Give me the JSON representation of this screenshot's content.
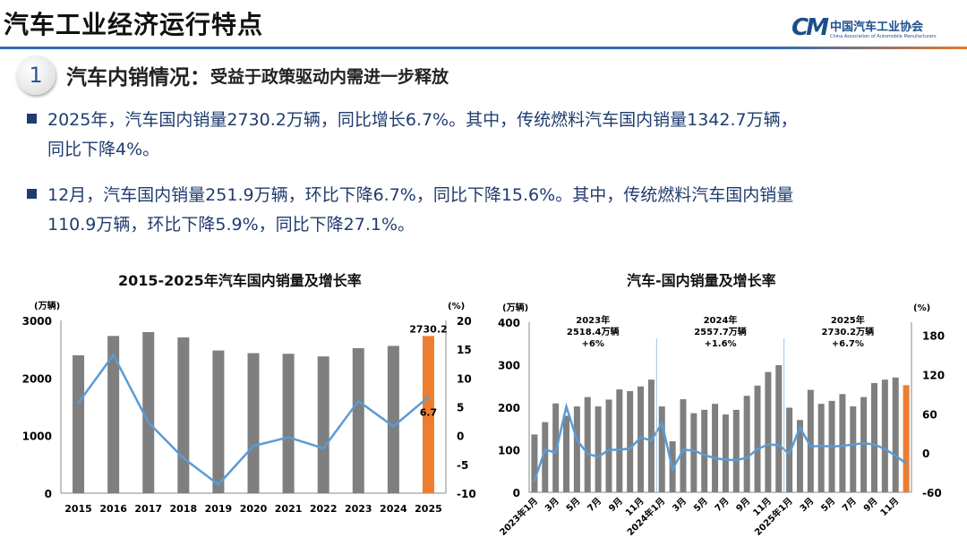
{
  "header": {
    "title": "汽车工业经济运行特点",
    "logo_mark": "CM",
    "logo_cn": "中国汽车工业协会",
    "logo_en": "China Association of Automobile Manufacturers"
  },
  "section": {
    "number": "1",
    "title": "汽车内销情况：",
    "subtitle": "受益于政策驱动内需进一步释放"
  },
  "bullets": [
    {
      "line1": "2025年，汽车国内销量2730.2万辆，同比增长6.7%。其中，传统燃料汽车国内销量1342.7万辆，",
      "line2": "同比下降4%。"
    },
    {
      "line1": "12月，汽车国内销量251.9万辆，环比下降6.7%，同比下降15.6%。其中，传统燃料汽车国内销量",
      "line2": "110.9万辆，环比下降5.9%，同比下降27.1%。"
    }
  ],
  "colors": {
    "bar": "#7f7f7f",
    "highlight": "#ed7d31",
    "line": "#5b9bd5",
    "text": "#1f3c6e"
  },
  "chart_data": [
    {
      "type": "bar+line",
      "title": "2015-2025年汽车国内销量及增长率",
      "ylabel": "(万辆)",
      "y2label": "(%)",
      "ylim": [
        0,
        3000
      ],
      "yticks": [
        0,
        1000,
        2000,
        3000
      ],
      "y2lim": [
        -10,
        20
      ],
      "y2ticks": [
        -10,
        -5,
        0,
        5,
        10,
        15,
        20
      ],
      "categories": [
        "2015",
        "2016",
        "2017",
        "2018",
        "2019",
        "2020",
        "2021",
        "2022",
        "2023",
        "2024",
        "2025"
      ],
      "series": [
        {
          "kind": "bar",
          "axis": "left",
          "values": [
            2395,
            2731,
            2798,
            2705,
            2478,
            2432,
            2421,
            2375,
            2518.4,
            2557.7,
            2730.2
          ]
        },
        {
          "kind": "line",
          "axis": "right",
          "values": [
            5.7,
            14.0,
            2.3,
            -3.9,
            -8.5,
            -1.8,
            -0.3,
            -2.2,
            6.0,
            1.6,
            6.7
          ]
        }
      ],
      "annotations": {
        "bar_label": "2730.2",
        "line_label": "6.7"
      },
      "highlight_index": 10,
      "grid": false
    },
    {
      "type": "bar+line",
      "title": "汽车-国内销量及增长率",
      "ylabel": "(万辆)",
      "y2label": "(%)",
      "ylim": [
        0,
        400
      ],
      "yticks": [
        0,
        100,
        200,
        300,
        400
      ],
      "y2lim": [
        -60,
        200
      ],
      "y2ticks": [
        -60,
        0,
        60,
        120,
        180
      ],
      "categories": [
        "2023年1月",
        "2",
        "3月",
        "4",
        "5月",
        "6",
        "7月",
        "8",
        "9月",
        "10",
        "11月",
        "12",
        "2024年1月",
        "2",
        "3月",
        "4",
        "5月",
        "6",
        "7月",
        "8",
        "9月",
        "10",
        "11月",
        "12",
        "2025年1月",
        "2",
        "3月",
        "4",
        "5月",
        "6",
        "7月",
        "8",
        "9月",
        "10",
        "11月",
        "12"
      ],
      "tick_labels": [
        "2023年1月",
        "3月",
        "5月",
        "7月",
        "9月",
        "11月",
        "2024年1月",
        "3月",
        "5月",
        "7月",
        "9月",
        "11月",
        "2025年1月",
        "3月",
        "5月",
        "7月",
        "9月",
        "11月"
      ],
      "series": [
        {
          "kind": "bar",
          "axis": "left",
          "values": [
            136,
            165,
            209,
            180,
            202,
            224,
            202,
            218,
            242,
            238,
            249,
            265,
            202,
            120,
            219,
            186,
            194,
            208,
            183,
            194,
            227,
            251,
            283,
            299,
            199,
            170,
            241,
            208,
            215,
            231,
            202,
            224,
            257,
            265,
            270,
            251.9
          ]
        },
        {
          "kind": "line",
          "axis": "right",
          "values": [
            -42,
            5,
            1,
            71,
            20,
            -1,
            -6,
            5,
            5,
            7,
            24,
            19,
            46,
            -25,
            5,
            4,
            -3,
            -8,
            -10,
            -11,
            -7,
            6,
            13,
            12,
            -1,
            39,
            10,
            11,
            10,
            11,
            13,
            15,
            13,
            6,
            -4,
            -16
          ]
        }
      ],
      "year_annotations": [
        {
          "year": "2023年",
          "total": "2518.4万辆",
          "growth": "+6%"
        },
        {
          "year": "2024年",
          "total": "2557.7万辆",
          "growth": "+1.6%"
        },
        {
          "year": "2025年",
          "total": "2730.2万辆",
          "growth": "+6.7%"
        }
      ],
      "highlight_index": 35,
      "grid": false
    }
  ]
}
